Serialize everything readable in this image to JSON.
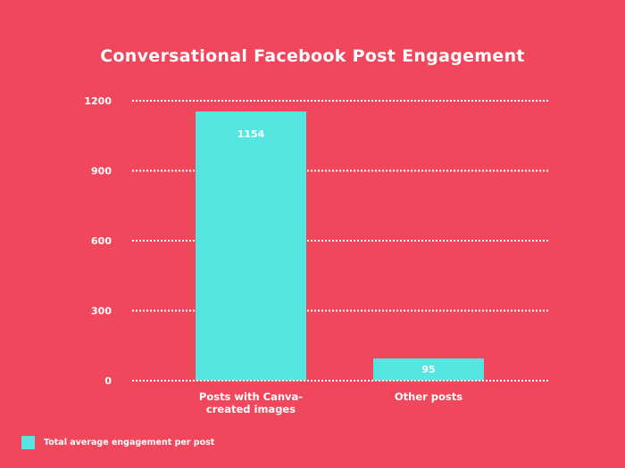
{
  "chart_data": {
    "type": "bar",
    "title": "Conversational Facebook Post Engagement",
    "categories": [
      [
        "Posts with Canva-",
        "created images"
      ],
      [
        "Other posts"
      ]
    ],
    "series": [
      {
        "name": "Total average engagement per post",
        "values": [
          1154,
          95
        ]
      }
    ],
    "data_labels": [
      "1154",
      "95"
    ],
    "yticks": [
      0,
      300,
      600,
      900,
      1200
    ],
    "ylim": [
      0,
      1200
    ],
    "grid": true,
    "grid_style": "dotted",
    "legend_position": "bottom-left",
    "colors": {
      "background": "#f0475d",
      "bar": "#55e6e2",
      "text": "#ffffff"
    }
  }
}
